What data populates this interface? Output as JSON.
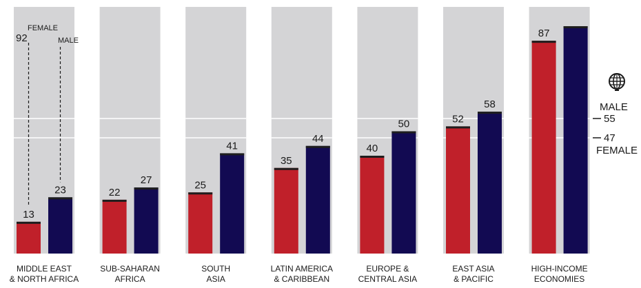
{
  "chart_data": {
    "type": "bar",
    "categories": [
      [
        "MIDDLE EAST",
        "& NORTH AFRICA"
      ],
      [
        "SUB-SAHARAN",
        "AFRICA"
      ],
      [
        "SOUTH",
        "ASIA"
      ],
      [
        "LATIN AMERICA",
        "& CARIBBEAN"
      ],
      [
        "EUROPE &",
        "CENTRAL ASIA"
      ],
      [
        "EAST ASIA",
        "& PACIFIC"
      ],
      [
        "HIGH-INCOME",
        "ECONOMIES"
      ]
    ],
    "series": [
      {
        "name": "FEMALE",
        "values": [
          13,
          22,
          25,
          35,
          40,
          52,
          87
        ]
      },
      {
        "name": "MALE",
        "values": [
          23,
          27,
          41,
          44,
          50,
          58,
          92
        ]
      }
    ],
    "value_labels": [
      [
        "13",
        "23"
      ],
      [
        "22",
        "27"
      ],
      [
        "25",
        "41"
      ],
      [
        "35",
        "44"
      ],
      [
        "40",
        "50"
      ],
      [
        "52",
        "58"
      ],
      [
        "87",
        ""
      ]
    ],
    "ylim": [
      0,
      100
    ],
    "callouts": {
      "overflow_value": "92",
      "female_label": "FEMALE",
      "male_label": "MALE"
    },
    "world": {
      "icon": "globe-icon",
      "male_label": "MALE",
      "male_value": "55",
      "male_value_num": 55,
      "female_value": "47",
      "female_value_num": 47,
      "female_label": "FEMALE"
    },
    "colors": {
      "female": "#c0202a",
      "male": "#120a52",
      "panel": "#d4d4d6",
      "cap": "#1e1e1e",
      "gridline": "#ffffff"
    }
  }
}
